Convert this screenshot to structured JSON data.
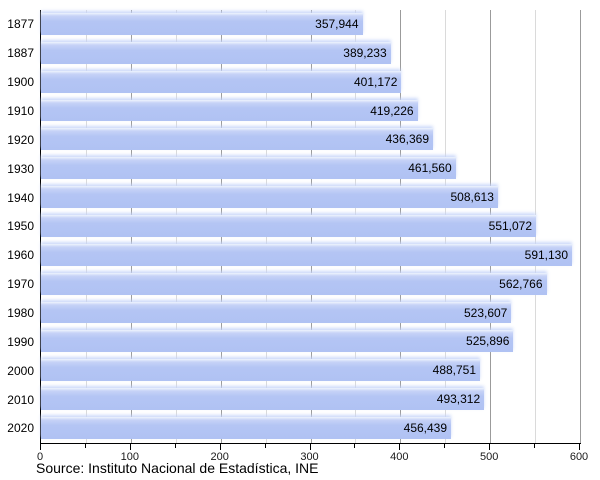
{
  "chart_data": {
    "type": "bar",
    "orientation": "horizontal",
    "title": "",
    "categories": [
      "1877",
      "1887",
      "1900",
      "1910",
      "1920",
      "1930",
      "1940",
      "1950",
      "1960",
      "1970",
      "1980",
      "1990",
      "2000",
      "2010",
      "2020"
    ],
    "values": [
      357944,
      389233,
      401172,
      419226,
      436369,
      461560,
      508613,
      551072,
      591130,
      562766,
      523607,
      525896,
      488751,
      493312,
      456439
    ],
    "value_labels": [
      "357,944",
      "389,233",
      "401,172",
      "419,226",
      "436,369",
      "461,560",
      "508,613",
      "551,072",
      "591,130",
      "562,766",
      "523,607",
      "525,896",
      "488,751",
      "493,312",
      "456,439"
    ],
    "x_axis": {
      "min": 0,
      "max": 600000,
      "major_tick": 100000,
      "minor_tick": 50000,
      "tick_labels": [
        "0",
        "100",
        "200",
        "300",
        "400",
        "500",
        "600"
      ]
    },
    "grid": true,
    "legend": "none",
    "colors": {
      "bar": "#b2c4f4",
      "bar_highlight": "#e6edfc",
      "grid_major": "#9b9b9b",
      "grid_minor": "#dadada",
      "axis": "#000000",
      "text": "#000000",
      "background": "#ffffff"
    }
  },
  "footer": {
    "source_note": "Source: Instituto Nacional de Estadística, INE"
  }
}
